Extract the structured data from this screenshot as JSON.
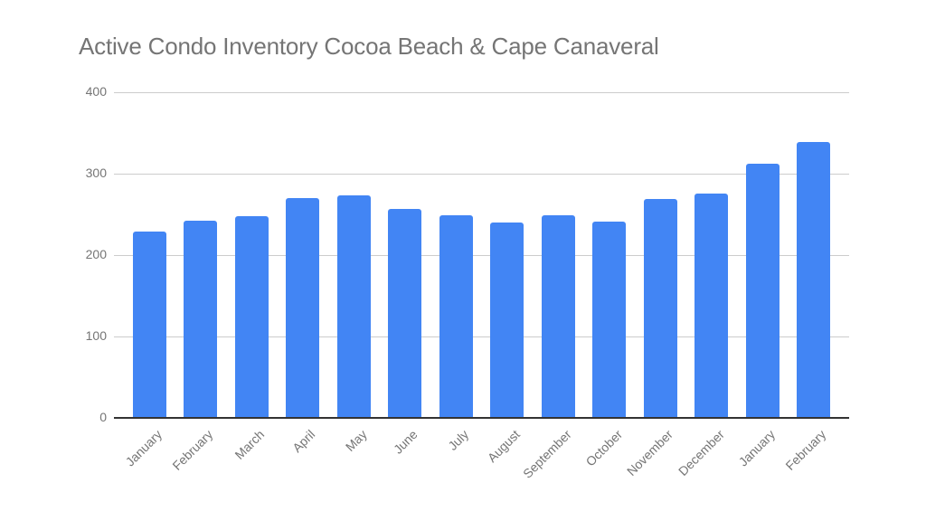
{
  "title": "Active Condo Inventory Cocoa Beach & Cape Canaveral",
  "colors": {
    "bar": "#4285f4",
    "grid": "#cccccc",
    "axis": "#333333",
    "text": "#757575"
  },
  "chart_data": {
    "type": "bar",
    "title": "Active Condo Inventory Cocoa Beach & Cape Canaveral",
    "xlabel": "",
    "ylabel": "",
    "ylim": [
      0,
      400
    ],
    "yticks": [
      0,
      100,
      200,
      300,
      400
    ],
    "grid": true,
    "legend": "none",
    "categories": [
      "January",
      "February",
      "March",
      "April",
      "May",
      "June",
      "July",
      "August",
      "September",
      "October",
      "November",
      "December",
      "January",
      "February"
    ],
    "series": [
      {
        "name": "Active Condo Inventory",
        "values": [
          228,
          242,
          247,
          269,
          273,
          256,
          248,
          240,
          248,
          241,
          268,
          275,
          312,
          338
        ]
      }
    ]
  }
}
